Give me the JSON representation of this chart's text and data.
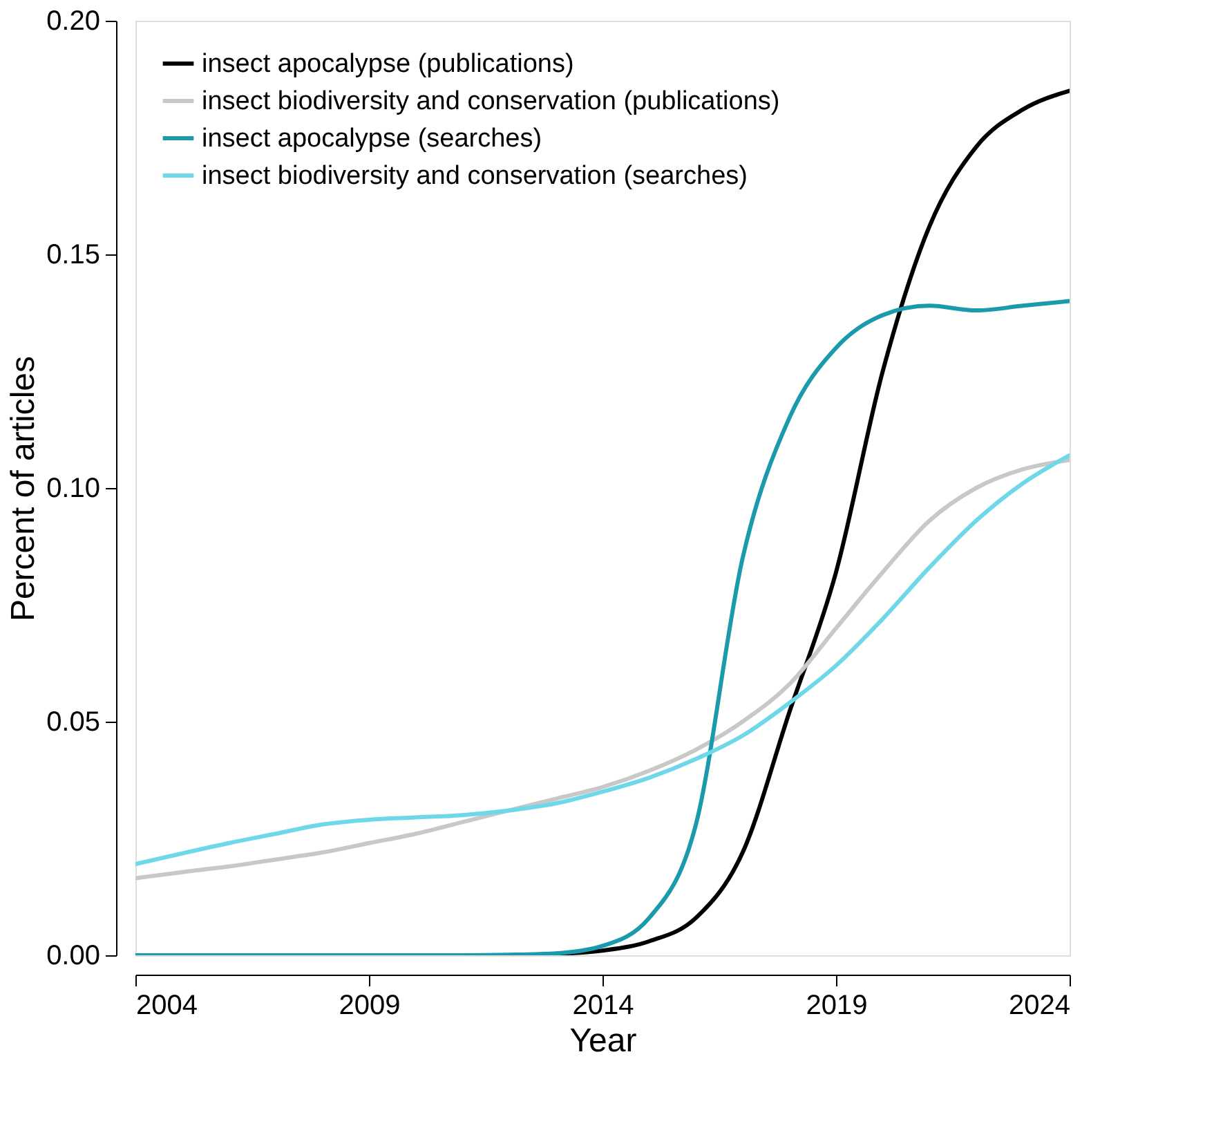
{
  "chart_data": {
    "type": "line",
    "xlabel": "Year",
    "ylabel": "Percent of articles",
    "x": [
      2004,
      2005,
      2006,
      2007,
      2008,
      2009,
      2010,
      2011,
      2012,
      2013,
      2014,
      2015,
      2016,
      2017,
      2018,
      2019,
      2020,
      2021,
      2022,
      2023,
      2024
    ],
    "series": [
      {
        "name": "insect apocalypse (publications)",
        "color": "#000000",
        "values": [
          null,
          null,
          null,
          null,
          null,
          null,
          null,
          null,
          null,
          0.0003,
          0.001,
          0.003,
          0.008,
          0.022,
          0.052,
          0.082,
          0.125,
          0.156,
          0.173,
          0.181,
          0.185
        ]
      },
      {
        "name": "insect biodiversity and conservation (publications)",
        "color": "#c8c8c8",
        "values": [
          0.0165,
          0.0178,
          0.019,
          0.0205,
          0.022,
          0.024,
          0.026,
          0.0285,
          0.031,
          0.0335,
          0.036,
          0.0395,
          0.044,
          0.05,
          0.058,
          0.07,
          0.082,
          0.093,
          0.1,
          0.104,
          0.106
        ]
      },
      {
        "name": "insect apocalypse (searches)",
        "color": "#1a9aaa",
        "values": [
          0,
          0,
          0,
          0,
          0,
          0,
          0,
          0,
          0.0001,
          0.0004,
          0.002,
          0.008,
          0.028,
          0.085,
          0.115,
          0.13,
          0.137,
          0.139,
          0.138,
          0.139,
          0.14
        ]
      },
      {
        "name": "insect biodiversity and conservation (searches)",
        "color": "#6fd8e8",
        "values": [
          0.0195,
          0.0218,
          0.024,
          0.026,
          0.028,
          0.029,
          0.0295,
          0.03,
          0.031,
          0.0325,
          0.035,
          0.038,
          0.042,
          0.047,
          0.054,
          0.062,
          0.072,
          0.083,
          0.093,
          0.101,
          0.107
        ]
      }
    ],
    "xlim": [
      2004,
      2024
    ],
    "xticks": [
      2004,
      2009,
      2014,
      2019,
      2024
    ],
    "ylim": [
      0,
      0.2
    ],
    "yticks": [
      {
        "value": 0,
        "label": "0.00"
      },
      {
        "value": 0.05,
        "label": "0.05"
      },
      {
        "value": 0.1,
        "label": "0.10"
      },
      {
        "value": 0.15,
        "label": "0.15"
      },
      {
        "value": 0.2,
        "label": "0.20"
      }
    ],
    "legend": "top left",
    "grid": false,
    "line_style": "solid"
  }
}
